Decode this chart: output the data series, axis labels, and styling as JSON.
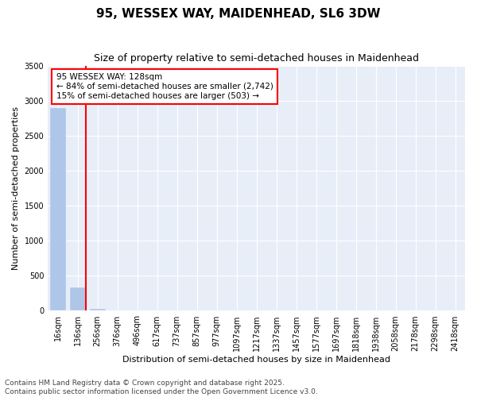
{
  "title": "95, WESSEX WAY, MAIDENHEAD, SL6 3DW",
  "subtitle": "Size of property relative to semi-detached houses in Maidenhead",
  "xlabel": "Distribution of semi-detached houses by size in Maidenhead",
  "ylabel": "Number of semi-detached properties",
  "bar_labels": [
    "16sqm",
    "136sqm",
    "256sqm",
    "376sqm",
    "496sqm",
    "617sqm",
    "737sqm",
    "857sqm",
    "977sqm",
    "1097sqm",
    "1217sqm",
    "1337sqm",
    "1457sqm",
    "1577sqm",
    "1697sqm",
    "1818sqm",
    "1938sqm",
    "2058sqm",
    "2178sqm",
    "2298sqm",
    "2418sqm"
  ],
  "bar_values": [
    2900,
    330,
    30,
    5,
    2,
    1,
    0,
    0,
    0,
    0,
    0,
    0,
    0,
    0,
    0,
    0,
    0,
    0,
    0,
    0,
    0
  ],
  "bar_color": "#aec6e8",
  "vline_color": "red",
  "vline_x": 1.4,
  "annotation_text": "95 WESSEX WAY: 128sqm\n← 84% of semi-detached houses are smaller (2,742)\n15% of semi-detached houses are larger (503) →",
  "annotation_box_color": "red",
  "ylim": [
    0,
    3500
  ],
  "yticks": [
    0,
    500,
    1000,
    1500,
    2000,
    2500,
    3000,
    3500
  ],
  "bg_color": "#e8eef8",
  "footer": "Contains HM Land Registry data © Crown copyright and database right 2025.\nContains public sector information licensed under the Open Government Licence v3.0.",
  "title_fontsize": 11,
  "subtitle_fontsize": 9,
  "axis_label_fontsize": 8,
  "tick_fontsize": 7,
  "footer_fontsize": 6.5,
  "ann_fontsize": 7.5
}
